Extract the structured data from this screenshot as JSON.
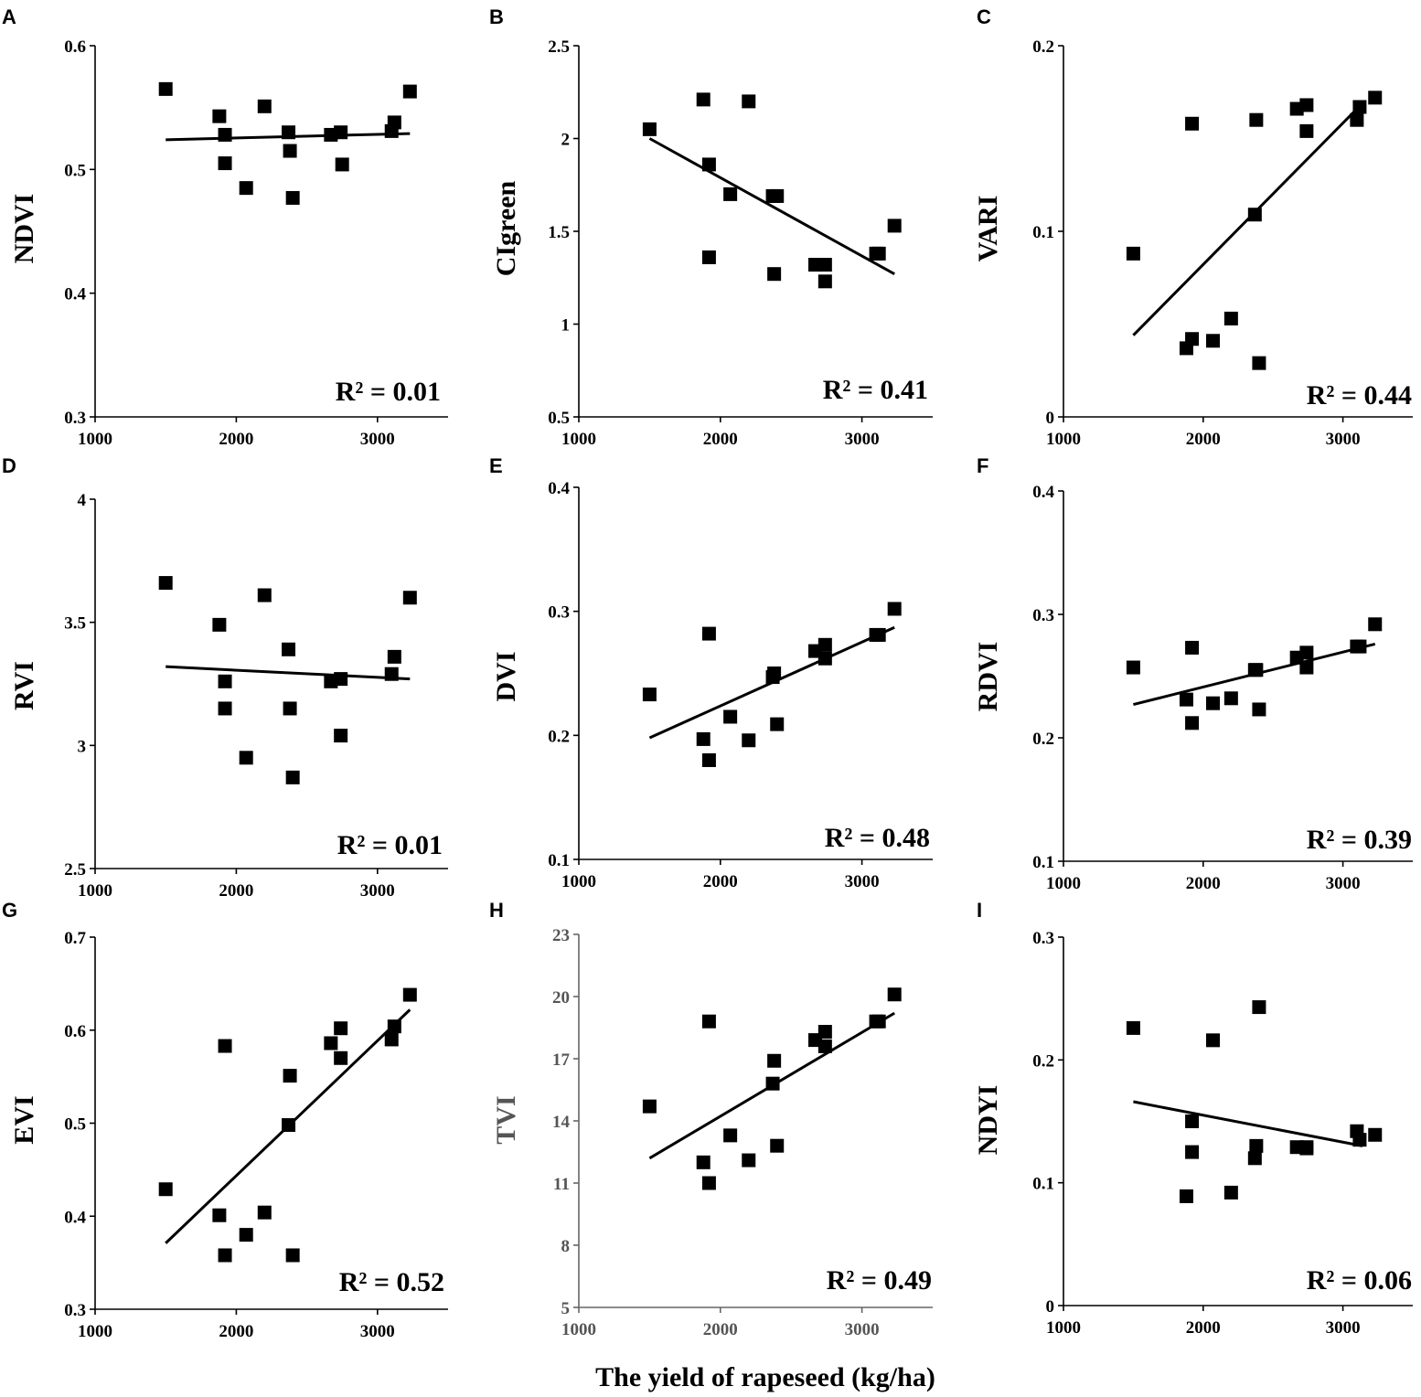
{
  "x_axis_title": "The yield of rapeseed (kg/ha)",
  "chart_data": [
    {
      "panel": "A",
      "type": "scatter",
      "ylabel": "NDVI",
      "r2": "R² = 0.01",
      "xlim": [
        1000,
        3500
      ],
      "ylim": [
        0.3,
        0.6
      ],
      "xticks": [
        "1000",
        "2000",
        "3000"
      ],
      "yticks": [
        "0.3",
        "0.4",
        "0.5",
        "0.6"
      ],
      "x": [
        1500,
        1880,
        1920,
        1920,
        2070,
        2200,
        2370,
        2380,
        2400,
        2670,
        2740,
        2750,
        3100,
        3120,
        3230
      ],
      "y": [
        0.565,
        0.543,
        0.528,
        0.505,
        0.485,
        0.551,
        0.53,
        0.515,
        0.477,
        0.528,
        0.53,
        0.504,
        0.531,
        0.538,
        0.563
      ],
      "trend": {
        "x": [
          1500,
          3230
        ],
        "y": [
          0.524,
          0.529
        ]
      }
    },
    {
      "panel": "B",
      "type": "scatter",
      "ylabel": "CIgreen",
      "r2": "R² = 0.41",
      "xlim": [
        1000,
        3500
      ],
      "ylim": [
        0.5,
        2.5
      ],
      "xticks": [
        "1000",
        "2000",
        "3000"
      ],
      "yticks": [
        "0.5",
        "1",
        "1.5",
        "2",
        "2.5"
      ],
      "x": [
        1500,
        1880,
        1920,
        1920,
        2070,
        2200,
        2370,
        2380,
        2400,
        2670,
        2740,
        2740,
        3100,
        3120,
        3230
      ],
      "y": [
        2.05,
        2.21,
        1.86,
        1.36,
        1.7,
        2.2,
        1.69,
        1.27,
        1.69,
        1.32,
        1.32,
        1.23,
        1.38,
        1.38,
        1.53
      ],
      "trend": {
        "x": [
          1500,
          3230
        ],
        "y": [
          2.0,
          1.27
        ]
      }
    },
    {
      "panel": "C",
      "type": "scatter",
      "ylabel": "VARI",
      "r2": "R² = 0.44",
      "xlim": [
        1000,
        3500
      ],
      "ylim": [
        0,
        0.2
      ],
      "xticks": [
        "1000",
        "2000",
        "3000"
      ],
      "yticks": [
        "0",
        "0.1",
        "0.2"
      ],
      "x": [
        1500,
        1880,
        1920,
        1920,
        2070,
        2200,
        2370,
        2380,
        2400,
        2670,
        2740,
        2740,
        3100,
        3120,
        3230
      ],
      "y": [
        0.088,
        0.037,
        0.042,
        0.158,
        0.041,
        0.053,
        0.109,
        0.16,
        0.029,
        0.166,
        0.168,
        0.154,
        0.16,
        0.167,
        0.172
      ],
      "trend": {
        "x": [
          1500,
          3140
        ],
        "y": [
          0.044,
          0.169
        ]
      }
    },
    {
      "panel": "D",
      "type": "scatter",
      "ylabel": "RVI",
      "r2": "R² = 0.01",
      "xlim": [
        1000,
        3500
      ],
      "ylim": [
        2.5,
        4
      ],
      "xticks": [
        "1000",
        "2000",
        "3000"
      ],
      "yticks": [
        "2.5",
        "3",
        "3.5",
        "4"
      ],
      "x": [
        1500,
        1880,
        1920,
        1920,
        2070,
        2200,
        2370,
        2380,
        2400,
        2670,
        2740,
        2740,
        3100,
        3120,
        3230
      ],
      "y": [
        3.66,
        3.49,
        3.26,
        3.15,
        2.95,
        3.61,
        3.39,
        3.15,
        2.87,
        3.26,
        3.27,
        3.04,
        3.29,
        3.36,
        3.6
      ],
      "trend": {
        "x": [
          1500,
          3230
        ],
        "y": [
          3.32,
          3.27
        ]
      }
    },
    {
      "panel": "E",
      "type": "scatter",
      "ylabel": "DVI",
      "r2": "R² = 0.48",
      "xlim": [
        1000,
        3500
      ],
      "ylim": [
        0.1,
        0.4
      ],
      "xticks": [
        "1000",
        "2000",
        "3000"
      ],
      "yticks": [
        "0.1",
        "0.2",
        "0.3",
        "0.4"
      ],
      "x": [
        1500,
        1880,
        1920,
        1920,
        2070,
        2200,
        2370,
        2380,
        2400,
        2670,
        2740,
        2740,
        3100,
        3120,
        3230
      ],
      "y": [
        0.233,
        0.197,
        0.18,
        0.282,
        0.215,
        0.196,
        0.247,
        0.25,
        0.209,
        0.268,
        0.273,
        0.262,
        0.281,
        0.281,
        0.302
      ],
      "trend": {
        "x": [
          1500,
          3230
        ],
        "y": [
          0.198,
          0.287
        ]
      }
    },
    {
      "panel": "F",
      "type": "scatter",
      "ylabel": "RDVI",
      "r2": "R² = 0.39",
      "xlim": [
        1000,
        3500
      ],
      "ylim": [
        0.1,
        0.4
      ],
      "xticks": [
        "1000",
        "2000",
        "3000"
      ],
      "yticks": [
        "0.1",
        "0.2",
        "0.3",
        "0.4"
      ],
      "x": [
        1500,
        1880,
        1920,
        1920,
        2070,
        2200,
        2370,
        2380,
        2400,
        2670,
        2740,
        2740,
        3100,
        3120,
        3230
      ],
      "y": [
        0.257,
        0.231,
        0.212,
        0.273,
        0.228,
        0.232,
        0.255,
        0.255,
        0.223,
        0.265,
        0.269,
        0.257,
        0.274,
        0.274,
        0.292
      ],
      "trend": {
        "x": [
          1500,
          3230
        ],
        "y": [
          0.227,
          0.276
        ]
      }
    },
    {
      "panel": "G",
      "type": "scatter",
      "ylabel": "EVI",
      "r2": "R² = 0.52",
      "xlim": [
        1000,
        3500
      ],
      "ylim": [
        0.3,
        0.7
      ],
      "xticks": [
        "1000",
        "2000",
        "3000"
      ],
      "yticks": [
        "0.3",
        "0.4",
        "0.5",
        "0.6",
        "0.7"
      ],
      "x": [
        1500,
        1880,
        1920,
        1920,
        2070,
        2200,
        2370,
        2380,
        2400,
        2670,
        2740,
        2740,
        3100,
        3120,
        3230
      ],
      "y": [
        0.429,
        0.401,
        0.358,
        0.583,
        0.38,
        0.404,
        0.498,
        0.551,
        0.358,
        0.586,
        0.602,
        0.57,
        0.59,
        0.604,
        0.638
      ],
      "trend": {
        "x": [
          1500,
          3230
        ],
        "y": [
          0.371,
          0.622
        ]
      }
    },
    {
      "panel": "H",
      "type": "scatter",
      "ylabel": "TVI",
      "r2": "R² = 0.49",
      "xlim": [
        1000,
        3500
      ],
      "ylim": [
        5,
        23
      ],
      "xticks": [
        "1000",
        "2000",
        "3000"
      ],
      "yticks": [
        "5",
        "8",
        "11",
        "14",
        "17",
        "20",
        "23"
      ],
      "x": [
        1500,
        1880,
        1920,
        1920,
        2070,
        2200,
        2370,
        2380,
        2400,
        2670,
        2740,
        2740,
        3100,
        3120,
        3230
      ],
      "y": [
        14.7,
        12.0,
        11.0,
        18.8,
        13.3,
        12.1,
        15.8,
        16.9,
        12.8,
        17.9,
        18.3,
        17.6,
        18.8,
        18.8,
        20.1
      ],
      "trend": {
        "x": [
          1500,
          3230
        ],
        "y": [
          12.2,
          19.2
        ]
      }
    },
    {
      "panel": "I",
      "type": "scatter",
      "ylabel": "NDYI",
      "r2": "R² = 0.06",
      "xlim": [
        1000,
        3500
      ],
      "ylim": [
        0,
        0.3
      ],
      "xticks": [
        "1000",
        "2000",
        "3000"
      ],
      "yticks": [
        "0",
        "0.1",
        "0.2",
        "0.3"
      ],
      "x": [
        1500,
        1880,
        1920,
        1920,
        2070,
        2200,
        2370,
        2380,
        2400,
        2670,
        2740,
        2740,
        3100,
        3120,
        3230
      ],
      "y": [
        0.226,
        0.089,
        0.15,
        0.125,
        0.216,
        0.092,
        0.12,
        0.13,
        0.243,
        0.129,
        0.129,
        0.128,
        0.142,
        0.135,
        0.139
      ],
      "trend": {
        "x": [
          1500,
          3140
        ],
        "y": [
          0.166,
          0.13
        ]
      }
    }
  ]
}
